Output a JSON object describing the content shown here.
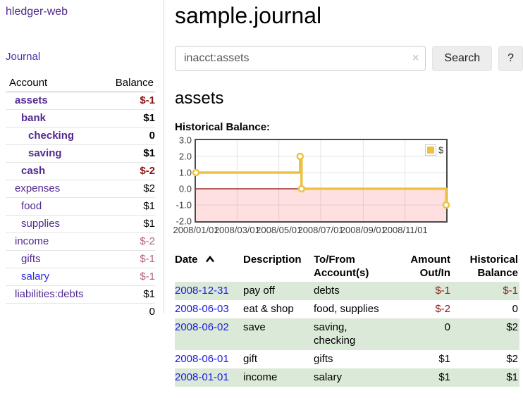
{
  "brand": "hledger-web",
  "nav": {
    "journal": "Journal"
  },
  "colors": {
    "link_purple": "#522a8f",
    "link_blue": "#1b1be0",
    "negative_strong": "#8c1414",
    "negative_faded": "#b26474",
    "row_stripe_green": "#dbe9d8",
    "chart_series_gold": "#edc240",
    "chart_zero_line": "#8b0000",
    "chart_negative_region": "rgba(255,0,0,0.12)"
  },
  "sidebar": {
    "headers": {
      "account": "Account",
      "balance": "Balance"
    },
    "rows": [
      {
        "name": "assets",
        "balance": "$-1",
        "indent": 1,
        "bold": true,
        "balance_class": "neg-strong"
      },
      {
        "name": "bank",
        "balance": "$1",
        "indent": 2,
        "bold": true,
        "balance_class": ""
      },
      {
        "name": "checking",
        "balance": "0",
        "indent": 3,
        "bold": true,
        "balance_class": ""
      },
      {
        "name": "saving",
        "balance": "$1",
        "indent": 3,
        "bold": true,
        "balance_class": ""
      },
      {
        "name": "cash",
        "balance": "$-2",
        "indent": 2,
        "bold": true,
        "balance_class": "neg-strong"
      },
      {
        "name": "expenses",
        "balance": "$2",
        "indent": 1,
        "bold": false,
        "balance_class": ""
      },
      {
        "name": "food",
        "balance": "$1",
        "indent": 2,
        "bold": false,
        "balance_class": ""
      },
      {
        "name": "supplies",
        "balance": "$1",
        "indent": 2,
        "bold": false,
        "balance_class": ""
      },
      {
        "name": "income",
        "balance": "$-2",
        "indent": 1,
        "bold": false,
        "balance_class": "neg-faded"
      },
      {
        "name": "gifts",
        "balance": "$-1",
        "indent": 2,
        "bold": false,
        "balance_class": "neg-faded"
      },
      {
        "name": "salary",
        "balance": "$-1",
        "indent": 2,
        "bold": false,
        "balance_class": "neg-faded",
        "link_color": "blue"
      },
      {
        "name": "liabilities:debts",
        "balance": "$1",
        "indent": 1,
        "bold": false,
        "balance_class": ""
      }
    ],
    "total": "0"
  },
  "main": {
    "title": "sample.journal",
    "search": {
      "value": "inacct:assets",
      "clear_icon": "×",
      "search_button": "Search",
      "help_button": "?"
    },
    "account_heading": "assets",
    "chart_title": "Historical Balance:"
  },
  "chart_data": {
    "type": "line",
    "step": true,
    "title": "Historical Balance:",
    "series": [
      {
        "name": "$",
        "color": "#edc240",
        "points": [
          {
            "date": "2008-01-01",
            "value": 1
          },
          {
            "date": "2008-06-01",
            "value": 2
          },
          {
            "date": "2008-06-03",
            "value": 0
          },
          {
            "date": "2008-12-31",
            "value": -1
          }
        ]
      }
    ],
    "x_range": [
      "2008-01-01",
      "2008-12-31"
    ],
    "y_range": [
      -2,
      3
    ],
    "y_ticks": [
      {
        "value": 3,
        "label": "3.0"
      },
      {
        "value": 2,
        "label": "2.0"
      },
      {
        "value": 1,
        "label": "1.0"
      },
      {
        "value": 0,
        "label": "0.0"
      },
      {
        "value": -1,
        "label": "-1.0"
      },
      {
        "value": -2,
        "label": "-2.0"
      }
    ],
    "x_ticks": [
      {
        "date": "2008-01-01",
        "label": "2008/01/01"
      },
      {
        "date": "2008-03-01",
        "label": "2008/03/01"
      },
      {
        "date": "2008-05-01",
        "label": "2008/05/01"
      },
      {
        "date": "2008-07-01",
        "label": "2008/07/01"
      },
      {
        "date": "2008-09-01",
        "label": "2008/09/01"
      },
      {
        "date": "2008-11-01",
        "label": "2008/11/01"
      }
    ],
    "grid": true,
    "legend": {
      "label": "$",
      "position": "top-right"
    },
    "negative_region_color": "rgba(255,0,0,0.12)",
    "zero_line_color": "#8b0000"
  },
  "transactions": {
    "headers": {
      "date": "Date",
      "description": "Description",
      "accounts": "To/From Account(s)",
      "amount": "Amount Out/In",
      "balance": "Historical Balance"
    },
    "rows": [
      {
        "date": "2008-12-31",
        "description": "pay off",
        "accounts": "debts",
        "amount": "$-1",
        "amount_neg": true,
        "balance": "$-1",
        "balance_neg": true
      },
      {
        "date": "2008-06-03",
        "description": "eat & shop",
        "accounts": "food, supplies",
        "amount": "$-2",
        "amount_neg": true,
        "balance": "0",
        "balance_neg": false
      },
      {
        "date": "2008-06-02",
        "description": "save",
        "accounts": "saving, checking",
        "amount": "0",
        "amount_neg": false,
        "balance": "$2",
        "balance_neg": false
      },
      {
        "date": "2008-06-01",
        "description": "gift",
        "accounts": "gifts",
        "amount": "$1",
        "amount_neg": false,
        "balance": "$2",
        "balance_neg": false
      },
      {
        "date": "2008-01-01",
        "description": "income",
        "accounts": "salary",
        "amount": "$1",
        "amount_neg": false,
        "balance": "$1",
        "balance_neg": false
      }
    ]
  }
}
